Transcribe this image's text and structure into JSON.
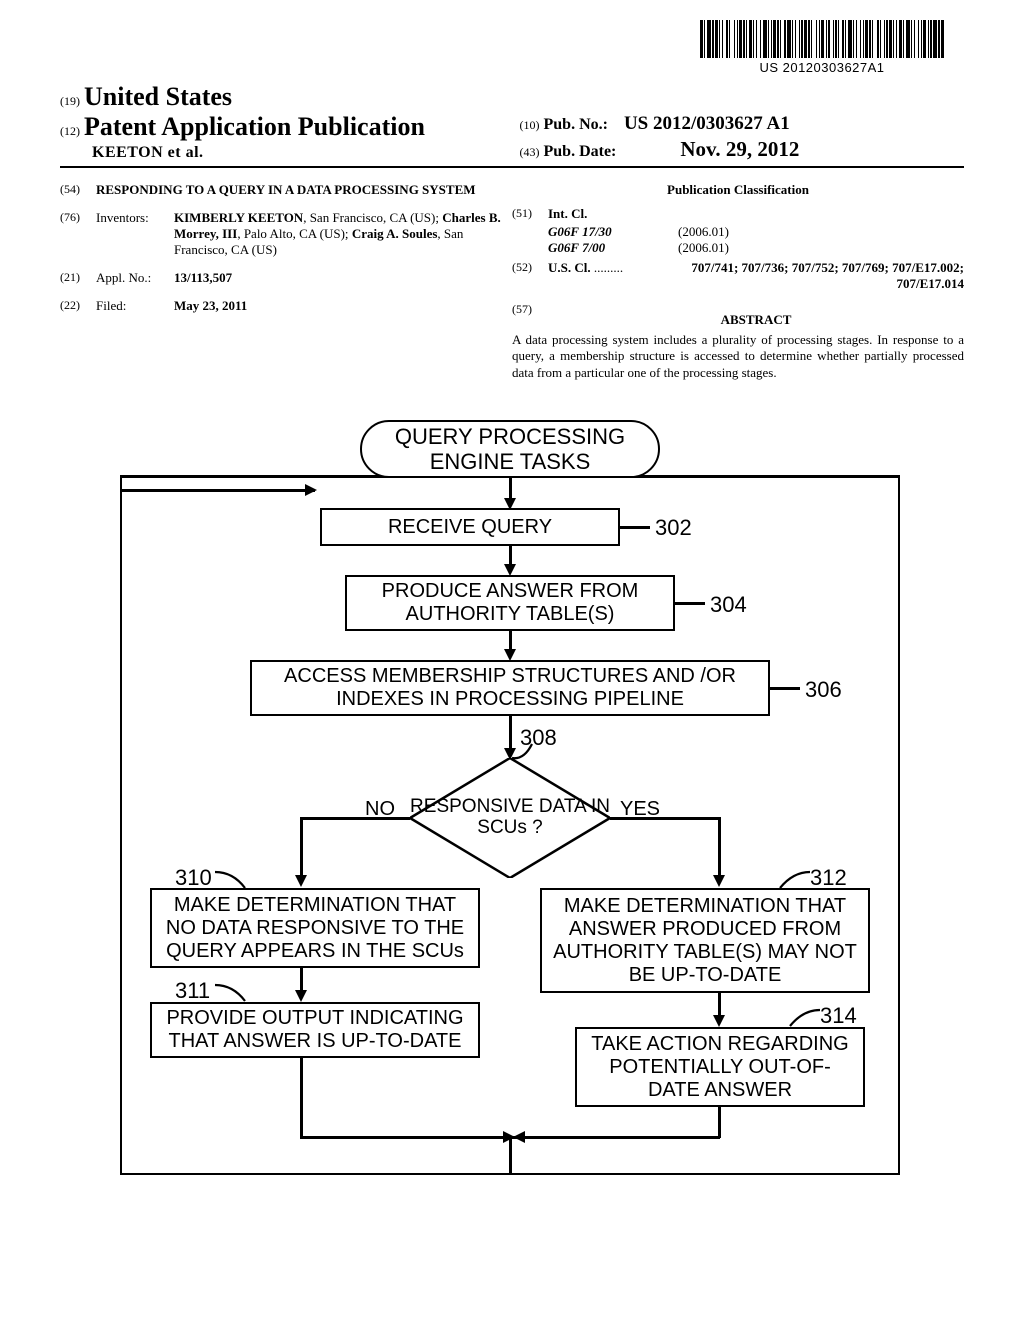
{
  "barcode_number": "US 20120303627A1",
  "header": {
    "code19": "(19)",
    "country": "United States",
    "code12": "(12)",
    "pub_title": "Patent Application Publication",
    "authors_etal": "KEETON et al.",
    "code10": "(10)",
    "pub_no_label": "Pub. No.:",
    "pub_no": "US 2012/0303627 A1",
    "code43": "(43)",
    "pub_date_label": "Pub. Date:",
    "pub_date": "Nov. 29, 2012"
  },
  "biblio": {
    "inid54": "(54)",
    "title": "RESPONDING TO A QUERY IN A DATA PROCESSING SYSTEM",
    "inid76": "(76)",
    "inventors_label": "Inventors:",
    "inventors_html": "KIMBERLY KEETON, San Francisco, CA (US); Charles B. Morrey, III, Palo Alto, CA (US); Craig A. Soules, San Francisco, CA (US)",
    "inv1_name": "KIMBERLY KEETON",
    "inv1_rest": ", San Francisco, CA (US); ",
    "inv2_name": "Charles B. Morrey, III",
    "inv2_rest": ", Palo Alto, CA (US); ",
    "inv3_name": "Craig A. Soules",
    "inv3_rest": ", San Francisco, CA (US)",
    "inid21": "(21)",
    "applno_label": "Appl. No.:",
    "applno": "13/113,507",
    "inid22": "(22)",
    "filed_label": "Filed:",
    "filed": "May 23, 2011",
    "classification_hdr": "Publication Classification",
    "inid51": "(51)",
    "intcl_label": "Int. Cl.",
    "intcl1_code": "G06F 17/30",
    "intcl1_date": "(2006.01)",
    "intcl2_code": "G06F 7/00",
    "intcl2_date": "(2006.01)",
    "inid52": "(52)",
    "uscl_label": "U.S. Cl.",
    "uscl_dots": " .........",
    "uscl_vals": "707/741; 707/736; 707/752; 707/769; 707/E17.002; 707/E17.014",
    "inid57": "(57)",
    "abstract_hdr": "ABSTRACT",
    "abstract": "A data processing system includes a plurality of processing stages. In response to a query, a membership structure is accessed to determine whether partially processed data from a particular one of the processing stages."
  },
  "flowchart": {
    "start": "QUERY PROCESSING ENGINE TASKS",
    "n302": "RECEIVE QUERY",
    "l302": "302",
    "n304": "PRODUCE ANSWER FROM AUTHORITY TABLE(S)",
    "l304": "304",
    "n306": "ACCESS MEMBERSHIP STRUCTURES AND /OR INDEXES IN PROCESSING PIPELINE",
    "l306": "306",
    "l308": "308",
    "decision": "RESPONSIVE DATA IN SCUs ?",
    "no": "NO",
    "yes": "YES",
    "l310": "310",
    "n310": "MAKE DETERMINATION THAT NO DATA RESPONSIVE TO THE QUERY APPEARS IN THE SCUs",
    "l311": "311",
    "n311": "PROVIDE OUTPUT INDICATING THAT ANSWER IS UP-TO-DATE",
    "l312": "312",
    "n312": "MAKE DETERMINATION THAT ANSWER PRODUCED FROM AUTHORITY TABLE(S) MAY NOT BE UP-TO-DATE",
    "l314": "314",
    "n314": "TAKE ACTION REGARDING POTENTIALLY OUT-OF-DATE ANSWER"
  }
}
